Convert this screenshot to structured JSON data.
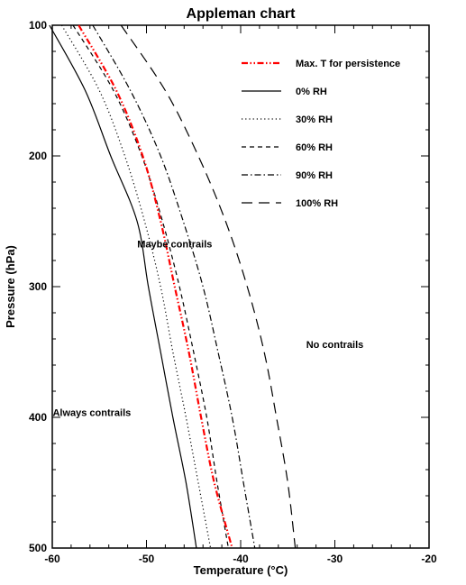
{
  "chart_data": {
    "type": "line",
    "title": "Appleman chart",
    "xlabel": "Temperature (°C)",
    "ylabel": "Pressure (hPa)",
    "xlim": [
      -60,
      -20
    ],
    "ylim": [
      100,
      500
    ],
    "y_inverted": true,
    "x_ticks": [
      -60,
      -50,
      -40,
      -30,
      -20
    ],
    "y_ticks": [
      100,
      200,
      300,
      400,
      500
    ],
    "grid": false,
    "legend_position": "top-right",
    "series": [
      {
        "name": "Max. T for persistence",
        "style": "dash-dot-dot",
        "color": "#ff0000",
        "points": [
          [
            -57.2,
            100
          ],
          [
            -53.2,
            150
          ],
          [
            -50.4,
            200
          ],
          [
            -48.5,
            250
          ],
          [
            -47.0,
            300
          ],
          [
            -45.5,
            350
          ],
          [
            -44.2,
            400
          ],
          [
            -42.8,
            450
          ],
          [
            -40.9,
            500
          ]
        ]
      },
      {
        "name": "0% RH",
        "style": "solid",
        "color": "#000000",
        "points": [
          [
            -60.3,
            100
          ],
          [
            -56.5,
            150
          ],
          [
            -53.8,
            200
          ],
          [
            -51.0,
            250
          ],
          [
            -49.8,
            300
          ],
          [
            -48.5,
            350
          ],
          [
            -47.2,
            400
          ],
          [
            -45.8,
            450
          ],
          [
            -44.7,
            500
          ]
        ]
      },
      {
        "name": "30% RH",
        "style": "dotted",
        "color": "#000000",
        "points": [
          [
            -59.0,
            100
          ],
          [
            -55.0,
            150
          ],
          [
            -52.3,
            200
          ],
          [
            -50.2,
            250
          ],
          [
            -48.5,
            300
          ],
          [
            -47.2,
            350
          ],
          [
            -45.8,
            400
          ],
          [
            -44.5,
            450
          ],
          [
            -43.2,
            500
          ]
        ]
      },
      {
        "name": "60% RH",
        "style": "dashed",
        "color": "#000000",
        "points": [
          [
            -57.8,
            100
          ],
          [
            -53.5,
            150
          ],
          [
            -50.5,
            200
          ],
          [
            -48.3,
            250
          ],
          [
            -46.5,
            300
          ],
          [
            -45.0,
            350
          ],
          [
            -43.6,
            400
          ],
          [
            -42.5,
            450
          ],
          [
            -41.3,
            500
          ]
        ]
      },
      {
        "name": "90% RH",
        "style": "dash-dot",
        "color": "#000000",
        "points": [
          [
            -55.7,
            100
          ],
          [
            -51.7,
            150
          ],
          [
            -48.5,
            200
          ],
          [
            -46.1,
            250
          ],
          [
            -44.0,
            300
          ],
          [
            -42.4,
            350
          ],
          [
            -40.9,
            400
          ],
          [
            -39.7,
            450
          ],
          [
            -38.5,
            500
          ]
        ]
      },
      {
        "name": "100% RH",
        "style": "long-dash",
        "color": "#000000",
        "points": [
          [
            -52.7,
            100
          ],
          [
            -48.0,
            150
          ],
          [
            -44.5,
            200
          ],
          [
            -41.6,
            250
          ],
          [
            -39.3,
            300
          ],
          [
            -37.5,
            350
          ],
          [
            -36.2,
            400
          ],
          [
            -35.0,
            450
          ],
          [
            -34.2,
            500
          ]
        ]
      }
    ],
    "annotations": [
      {
        "text": "Maybe contrails",
        "x": -47.0,
        "y": 270
      },
      {
        "text": "No contrails",
        "x": -30.0,
        "y": 347
      },
      {
        "text": "Always contrails",
        "x": -55.8,
        "y": 399
      }
    ]
  }
}
